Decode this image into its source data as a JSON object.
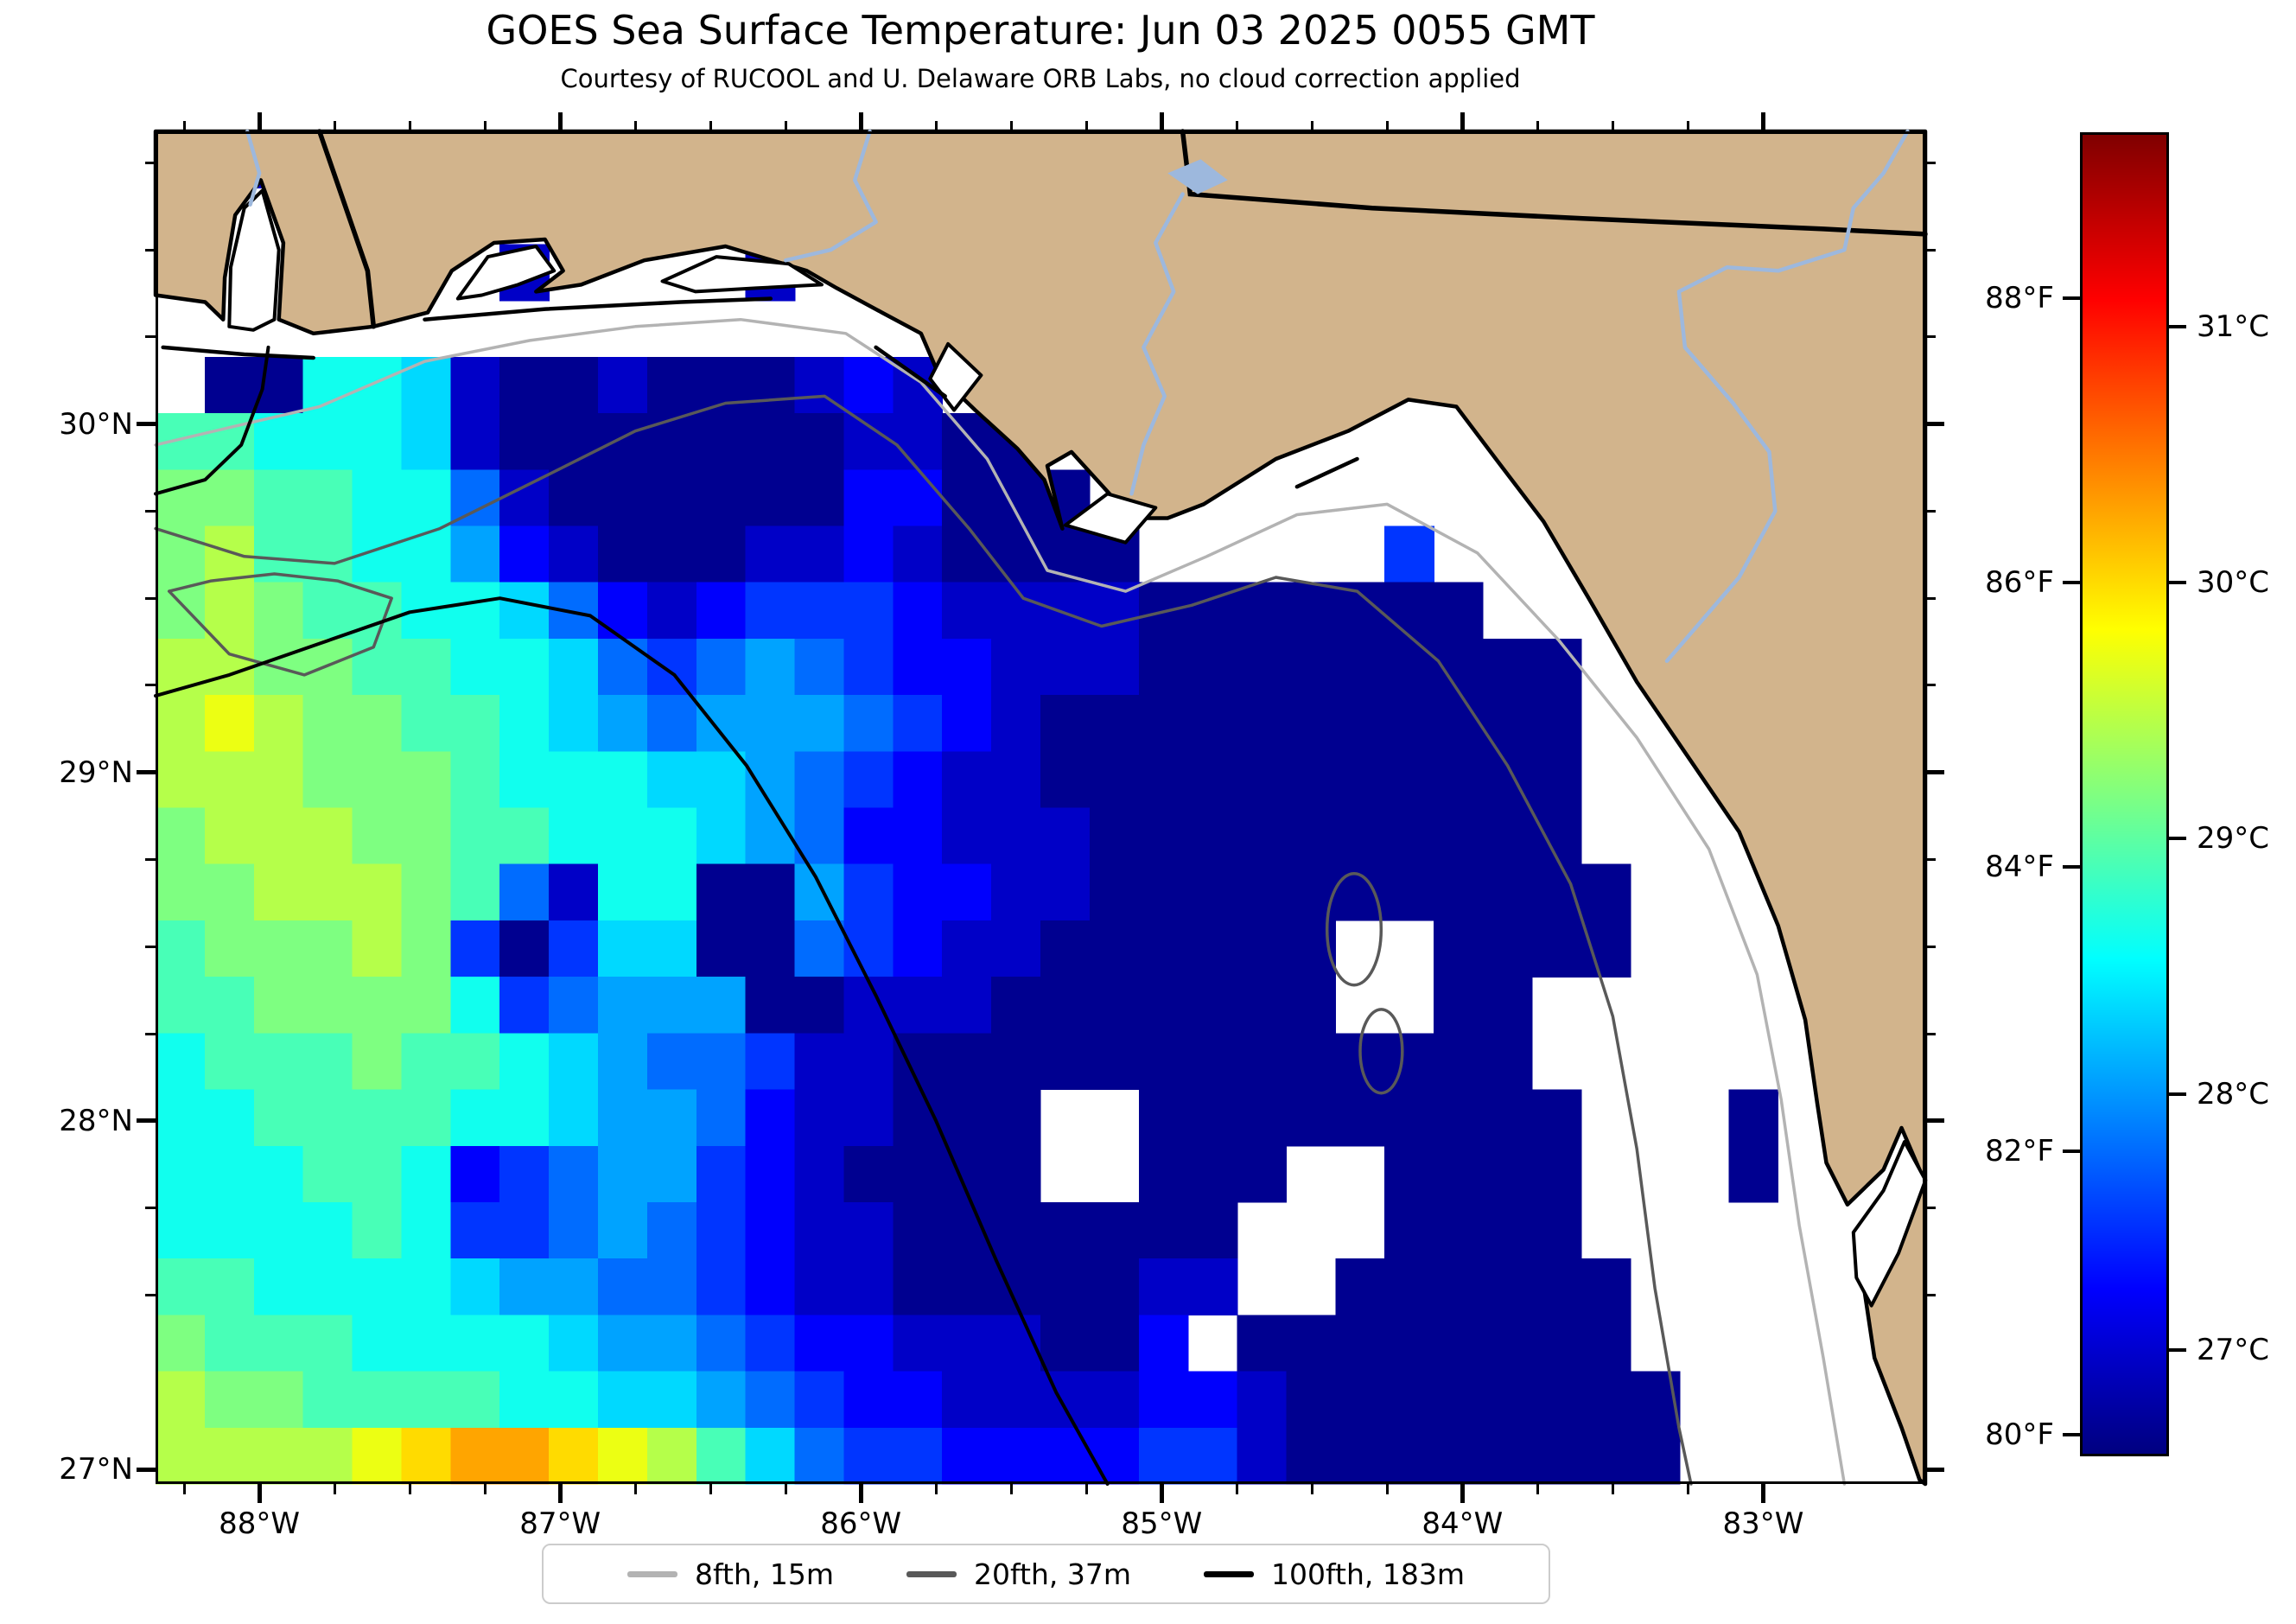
{
  "chart_data": {
    "type": "heatmap",
    "subtype": "satellite-sst-map",
    "title": "GOES Sea Surface Temperature: Jun 03 2025 0055 GMT",
    "subtitle": "Courtesy of RUCOOL and U. Delaware ORB Labs, no cloud correction applied",
    "x_axis": {
      "unit": "degrees west longitude",
      "major_tick_values": [
        88,
        87,
        86,
        85,
        84,
        83
      ],
      "major_tick_labels": [
        "88°W",
        "87°W",
        "86°W",
        "85°W",
        "84°W",
        "83°W"
      ],
      "minor_tick_step_deg": 0.25,
      "lon_left": 88.345,
      "lon_right": 82.461
    },
    "y_axis": {
      "unit": "degrees north latitude",
      "major_tick_values": [
        30,
        29,
        28,
        27
      ],
      "major_tick_labels": [
        "30°N",
        "29°N",
        "28°N",
        "27°N"
      ],
      "minor_tick_step_deg": 0.25,
      "lat_top": 30.84,
      "lat_bottom": 26.958
    },
    "colorbar": {
      "colormap": "jet",
      "orientation": "vertical",
      "value_range_f": [
        79.85,
        89.17
      ],
      "left_unit": "°F",
      "right_unit": "°C",
      "f_tick_values": [
        88,
        86,
        84,
        82,
        80
      ],
      "f_tick_labels": [
        "88°F",
        "86°F",
        "84°F",
        "82°F",
        "80°F"
      ],
      "c_tick_values": [
        31,
        30,
        29,
        28,
        27
      ],
      "c_tick_labels": [
        "31°C",
        "30°C",
        "29°C",
        "28°C",
        "27°C"
      ]
    },
    "legend": {
      "items": [
        {
          "label": "8fth, 15m",
          "color": "#b3b3b3"
        },
        {
          "label": "20fth, 37m",
          "color": "#595959"
        },
        {
          "label": "100fth, 183m",
          "color": "#000000"
        }
      ]
    },
    "colors": {
      "land": "#d2b48c",
      "coastline": "#000000",
      "state_border": "#000000",
      "river": "#9db8dd",
      "cloud_no_data": "#ffffff",
      "contour_8fth": "#b3b3b3",
      "contour_20fth": "#595959",
      "contour_100fth": "#000000"
    },
    "sst_grid": {
      "cols": 36,
      "rows": 24,
      "cell_encoding": "L=land cell (covered by land polygon), W=cloud/no-data (white), letters a..t = SST in °F: temp = 79.5 + 0.5*index('a..t')",
      "temp_base_f": 79.5,
      "temp_step_f": 0.5,
      "rows_data": [
        "LLcLLLLLLLLLLLLLLLLLLLLLLLLLLLLLLLLL",
        "LLWLLLLLLLLLLLLLLLLLLLLLLLLLLLLLLLLL",
        "LLWLLLWcLLLWcWLLLLLLLLLLLLLLLLLLLLLL",
        "WWWLLLLLLLLLLLLLLLLLLLLLLLLLLLLLLLLL",
        "WbbiihcbbcbbbcdcWbLLLLLLLLLLLLLLLLLL",
        "jjiiihcbbbbbbbccbbWWLLLLWWWWLLLLLLLL",
        "kkjjiifcbbbbbbddbbbWWWWWWWWWLLLLLLLL",
        "kljjiigdcbbbccdcbbbbWWWWWeWWWWLLLLLL",
        "klkjjiihfdcdeeedccccbbbbbbbWWWLLLLLL",
        "llkkjjiihfefgfeddcccbbbbbbbbbWWLLLLL",
        "lmlkkjjihgfgggfedcbbbbbbbbbbbWWLLLLL",
        "lllkkkjiiihhgfedccbbbbbbbbbbbWWWLLLL",
        "klllkkjjiiihgfddcccbbbbbbbbbbWWWLLLL",
        "kklllkjfciibbgeddccbbbbbbbbbbbWWWLLL",
        "jkkklkebehhbbfedccbbbbbbWWbbbbWWWLLL",
        "jjkkkkiefgggbbcccbbbbbbbWWbbWWWWWWLL",
        "ijjjkjjihgffeccbbbbbbbbbbbbbWWWWWWLL",
        "iijjjjiihggfdccbbbWWbbbbbbbbbWWWbWLL",
        "iiijjidefggedcbbbbWWbbbWWbbbbWWWbWWW",
        "iiiijieefgfedccbbbbbbbWWWbbbbWWWWWWW",
        "jjiiiihggffedccbbbbbccWWbbbbbbWWWWWL",
        "kjjjiiiihggfeddcccbbdWbbbbbbbbWWWWWL",
        "lkkjjjjiihhgfeddccccddcbbbbbbbbWWWWL",
        "llllmnoonmljhfeeddddeecbbbbbbbbWWWWW"
      ]
    },
    "map_features": {
      "land_coast_polygon": [
        [
          88.345,
          30.37
        ],
        [
          88.18,
          30.35
        ],
        [
          88.12,
          30.3
        ],
        [
          88.115,
          30.42
        ],
        [
          88.08,
          30.6
        ],
        [
          87.995,
          30.7
        ],
        [
          87.92,
          30.52
        ],
        [
          87.935,
          30.3
        ],
        [
          87.82,
          30.26
        ],
        [
          87.62,
          30.28
        ],
        [
          87.44,
          30.32
        ],
        [
          87.36,
          30.44
        ],
        [
          87.22,
          30.52
        ],
        [
          87.05,
          30.53
        ],
        [
          86.99,
          30.44
        ],
        [
          87.08,
          30.38
        ],
        [
          86.93,
          30.4
        ],
        [
          86.72,
          30.47
        ],
        [
          86.45,
          30.51
        ],
        [
          86.18,
          30.44
        ],
        [
          86.08,
          30.39
        ],
        [
          85.93,
          30.32
        ],
        [
          85.8,
          30.26
        ],
        [
          85.74,
          30.14
        ],
        [
          85.62,
          30.04
        ],
        [
          85.48,
          29.93
        ],
        [
          85.39,
          29.84
        ],
        [
          85.33,
          29.7
        ],
        [
          85.38,
          29.88
        ],
        [
          85.3,
          29.92
        ],
        [
          85.1,
          29.73
        ],
        [
          84.98,
          29.73
        ],
        [
          84.86,
          29.77
        ],
        [
          84.62,
          29.9
        ],
        [
          84.38,
          29.98
        ],
        [
          84.18,
          30.07
        ],
        [
          84.02,
          30.05
        ],
        [
          83.88,
          29.89
        ],
        [
          83.73,
          29.72
        ],
        [
          83.58,
          29.5
        ],
        [
          83.42,
          29.26
        ],
        [
          83.23,
          29.02
        ],
        [
          83.08,
          28.83
        ],
        [
          82.95,
          28.56
        ],
        [
          82.86,
          28.29
        ],
        [
          82.82,
          28.05
        ],
        [
          82.79,
          27.88
        ],
        [
          82.72,
          27.76
        ],
        [
          82.6,
          27.86
        ],
        [
          82.54,
          27.98
        ],
        [
          82.48,
          27.86
        ],
        [
          82.58,
          27.66
        ],
        [
          82.67,
          27.55
        ],
        [
          82.63,
          27.32
        ],
        [
          82.54,
          27.12
        ],
        [
          82.48,
          26.97
        ],
        [
          82.461,
          26.958
        ],
        [
          82.461,
          30.84
        ],
        [
          88.345,
          30.84
        ]
      ],
      "bays_no_data": [
        [
          [
            88.1,
            30.28
          ],
          [
            88.095,
            30.45
          ],
          [
            88.05,
            30.62
          ],
          [
            87.99,
            30.67
          ],
          [
            87.935,
            30.5
          ],
          [
            87.95,
            30.3
          ],
          [
            88.02,
            30.27
          ]
        ],
        [
          [
            87.34,
            30.36
          ],
          [
            87.24,
            30.48
          ],
          [
            87.08,
            30.51
          ],
          [
            87.02,
            30.44
          ],
          [
            87.14,
            30.4
          ],
          [
            87.26,
            30.37
          ]
        ],
        [
          [
            86.66,
            30.41
          ],
          [
            86.48,
            30.48
          ],
          [
            86.24,
            30.46
          ],
          [
            86.13,
            30.4
          ],
          [
            86.35,
            30.39
          ],
          [
            86.55,
            30.38
          ]
        ],
        [
          [
            85.77,
            30.13
          ],
          [
            85.71,
            30.23
          ],
          [
            85.6,
            30.14
          ],
          [
            85.69,
            30.04
          ]
        ],
        [
          [
            85.32,
            29.71
          ],
          [
            85.18,
            29.8
          ],
          [
            85.02,
            29.76
          ],
          [
            85.12,
            29.66
          ]
        ],
        [
          [
            82.7,
            27.68
          ],
          [
            82.6,
            27.8
          ],
          [
            82.53,
            27.94
          ],
          [
            82.46,
            27.83
          ],
          [
            82.55,
            27.62
          ],
          [
            82.64,
            27.47
          ],
          [
            82.69,
            27.55
          ]
        ]
      ],
      "barrier_islands": [
        [
          [
            88.32,
            30.22
          ],
          [
            88.05,
            30.2
          ],
          [
            87.82,
            30.19
          ]
        ],
        [
          [
            87.45,
            30.3
          ],
          [
            87.05,
            30.33
          ],
          [
            86.6,
            30.35
          ],
          [
            86.3,
            30.36
          ]
        ],
        [
          [
            85.95,
            30.22
          ],
          [
            85.72,
            30.08
          ]
        ],
        [
          [
            84.55,
            29.82
          ],
          [
            84.35,
            29.9
          ]
        ]
      ],
      "state_borders": [
        [
          [
            87.8,
            30.84
          ],
          [
            87.64,
            30.44
          ],
          [
            87.62,
            30.28
          ]
        ],
        [
          [
            84.93,
            30.84
          ],
          [
            84.905,
            30.66
          ],
          [
            84.3,
            30.62
          ],
          [
            83.6,
            30.59
          ],
          [
            82.8,
            30.56
          ],
          [
            82.461,
            30.545
          ]
        ]
      ],
      "rivers": [
        [
          [
            88.04,
            30.84
          ],
          [
            88.0,
            30.72
          ],
          [
            88.03,
            30.63
          ]
        ],
        [
          [
            85.97,
            30.84
          ],
          [
            86.02,
            30.7
          ],
          [
            85.95,
            30.58
          ],
          [
            86.1,
            30.5
          ],
          [
            86.25,
            30.47
          ]
        ],
        [
          [
            84.93,
            30.66
          ],
          [
            85.02,
            30.52
          ],
          [
            84.96,
            30.38
          ],
          [
            85.06,
            30.22
          ],
          [
            84.99,
            30.08
          ],
          [
            85.06,
            29.94
          ],
          [
            85.1,
            29.8
          ]
        ],
        [
          [
            82.52,
            30.84
          ],
          [
            82.6,
            30.72
          ],
          [
            82.7,
            30.62
          ],
          [
            82.73,
            30.5
          ],
          [
            82.95,
            30.44
          ],
          [
            83.12,
            30.45
          ],
          [
            83.28,
            30.38
          ],
          [
            83.26,
            30.22
          ],
          [
            83.1,
            30.06
          ],
          [
            82.98,
            29.92
          ],
          [
            82.96,
            29.75
          ],
          [
            83.08,
            29.56
          ],
          [
            83.22,
            29.42
          ],
          [
            83.32,
            29.32
          ]
        ]
      ],
      "lakes": [
        [
          [
            84.98,
            30.72
          ],
          [
            84.87,
            30.76
          ],
          [
            84.78,
            30.7
          ],
          [
            84.88,
            30.66
          ]
        ]
      ],
      "contour_8fth_paths": [
        [
          [
            88.345,
            29.94
          ],
          [
            88.1,
            29.99
          ],
          [
            87.8,
            30.05
          ],
          [
            87.45,
            30.18
          ],
          [
            87.1,
            30.24
          ],
          [
            86.75,
            30.28
          ],
          [
            86.4,
            30.3
          ],
          [
            86.05,
            30.26
          ],
          [
            85.8,
            30.12
          ],
          [
            85.58,
            29.9
          ],
          [
            85.38,
            29.58
          ],
          [
            85.12,
            29.52
          ],
          [
            84.85,
            29.62
          ],
          [
            84.55,
            29.74
          ],
          [
            84.25,
            29.77
          ],
          [
            83.95,
            29.63
          ],
          [
            83.68,
            29.38
          ],
          [
            83.42,
            29.1
          ],
          [
            83.18,
            28.78
          ],
          [
            83.02,
            28.42
          ],
          [
            82.94,
            28.06
          ],
          [
            82.88,
            27.7
          ],
          [
            82.8,
            27.32
          ],
          [
            82.73,
            26.958
          ]
        ]
      ],
      "contour_20fth_paths": [
        [
          [
            88.345,
            29.7
          ],
          [
            88.05,
            29.62
          ],
          [
            87.75,
            29.6
          ],
          [
            87.4,
            29.7
          ],
          [
            87.05,
            29.85
          ],
          [
            86.75,
            29.98
          ],
          [
            86.45,
            30.06
          ],
          [
            86.12,
            30.08
          ],
          [
            85.88,
            29.94
          ],
          [
            85.64,
            29.7
          ],
          [
            85.46,
            29.5
          ],
          [
            85.2,
            29.42
          ],
          [
            84.9,
            29.48
          ],
          [
            84.62,
            29.56
          ],
          [
            84.35,
            29.52
          ],
          [
            84.08,
            29.32
          ],
          [
            83.85,
            29.02
          ],
          [
            83.64,
            28.68
          ],
          [
            83.5,
            28.3
          ],
          [
            83.42,
            27.92
          ],
          [
            83.36,
            27.52
          ],
          [
            83.28,
            27.12
          ],
          [
            83.24,
            26.958
          ]
        ],
        [
          [
            88.3,
            29.52
          ],
          [
            88.1,
            29.34
          ],
          [
            87.85,
            29.28
          ],
          [
            87.62,
            29.36
          ],
          [
            87.56,
            29.5
          ],
          [
            87.74,
            29.55
          ],
          [
            87.95,
            29.57
          ],
          [
            88.16,
            29.55
          ],
          [
            88.3,
            29.52
          ]
        ]
      ],
      "contour_20fth_loops": [
        {
          "lon": 84.36,
          "lat": 28.55,
          "rlon": 0.09,
          "rlat": 0.16
        },
        {
          "lon": 84.27,
          "lat": 28.2,
          "rlon": 0.07,
          "rlat": 0.12
        }
      ],
      "contour_100fth_paths": [
        [
          [
            88.345,
            29.22
          ],
          [
            88.1,
            29.28
          ],
          [
            87.8,
            29.37
          ],
          [
            87.5,
            29.46
          ],
          [
            87.2,
            29.5
          ],
          [
            86.9,
            29.45
          ],
          [
            86.62,
            29.28
          ],
          [
            86.38,
            29.02
          ],
          [
            86.15,
            28.7
          ],
          [
            85.95,
            28.36
          ],
          [
            85.75,
            28.0
          ],
          [
            85.55,
            27.6
          ],
          [
            85.35,
            27.22
          ],
          [
            85.18,
            26.958
          ]
        ],
        [
          [
            88.345,
            29.8
          ],
          [
            88.18,
            29.84
          ],
          [
            88.06,
            29.94
          ],
          [
            87.99,
            30.1
          ],
          [
            87.97,
            30.22
          ]
        ]
      ]
    }
  }
}
